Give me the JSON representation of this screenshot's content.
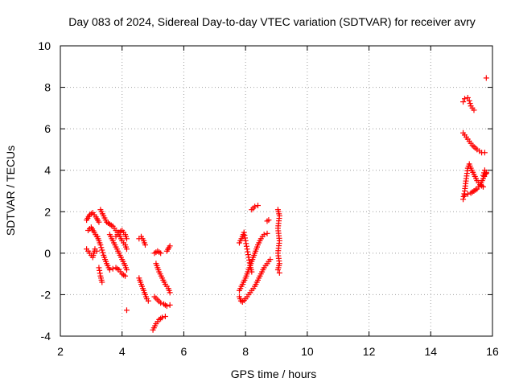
{
  "chart_data": {
    "type": "scatter",
    "title": "Day 083 of 2024, Sidereal Day-to-day VTEC variation (SDTVAR) for receiver avry",
    "xlabel": "GPS time / hours",
    "ylabel": "SDTVAR / TECUs",
    "xlim": [
      2,
      16
    ],
    "ylim": [
      -4,
      10
    ],
    "xticks": [
      2,
      4,
      6,
      8,
      10,
      12,
      14,
      16
    ],
    "yticks": [
      -4,
      -2,
      0,
      2,
      4,
      6,
      8,
      10
    ],
    "grid": true,
    "marker": "+",
    "series_color": "#ff0000",
    "tracks": [
      [
        [
          2.85,
          1.6
        ],
        [
          2.95,
          1.85
        ],
        [
          3.05,
          1.95
        ],
        [
          3.15,
          1.75
        ],
        [
          3.25,
          1.5
        ]
      ],
      [
        [
          2.85,
          0.2
        ],
        [
          2.95,
          0.0
        ],
        [
          3.05,
          -0.2
        ],
        [
          3.12,
          0.2
        ],
        [
          3.18,
          0.1
        ]
      ],
      [
        [
          2.9,
          1.1
        ],
        [
          3.0,
          1.25
        ],
        [
          3.1,
          1.0
        ],
        [
          3.18,
          0.8
        ]
      ],
      [
        [
          3.3,
          2.1
        ],
        [
          3.4,
          1.8
        ],
        [
          3.5,
          1.5
        ],
        [
          3.6,
          1.4
        ],
        [
          3.7,
          1.3
        ],
        [
          3.8,
          1.1
        ],
        [
          3.9,
          0.9
        ],
        [
          4.0,
          0.6
        ],
        [
          4.1,
          0.4
        ],
        [
          4.15,
          0.2
        ]
      ],
      [
        [
          3.2,
          0.8
        ],
        [
          3.3,
          0.4
        ],
        [
          3.4,
          -0.1
        ],
        [
          3.5,
          -0.5
        ],
        [
          3.6,
          -0.8
        ],
        [
          3.7,
          -0.75
        ],
        [
          3.8,
          -0.7
        ],
        [
          3.9,
          -0.8
        ],
        [
          4.0,
          -1.0
        ],
        [
          4.1,
          -1.1
        ]
      ],
      [
        [
          3.25,
          -0.7
        ],
        [
          3.3,
          -1.1
        ],
        [
          3.35,
          -1.4
        ]
      ],
      [
        [
          3.6,
          0.9
        ],
        [
          3.7,
          0.6
        ],
        [
          3.8,
          0.3
        ],
        [
          3.9,
          0.0
        ],
        [
          4.0,
          -0.3
        ],
        [
          4.1,
          -0.6
        ],
        [
          4.15,
          -0.8
        ]
      ],
      [
        [
          3.8,
          0.8
        ],
        [
          3.9,
          1.0
        ],
        [
          4.0,
          1.1
        ],
        [
          4.1,
          0.9
        ],
        [
          4.15,
          0.7
        ]
      ],
      [
        [
          4.15,
          -2.75
        ]
      ],
      [
        [
          4.55,
          0.7
        ],
        [
          4.62,
          0.8
        ],
        [
          4.7,
          0.6
        ],
        [
          4.75,
          0.4
        ]
      ],
      [
        [
          4.55,
          -1.2
        ],
        [
          4.62,
          -1.5
        ],
        [
          4.7,
          -1.8
        ],
        [
          4.75,
          -2.0
        ],
        [
          4.8,
          -2.2
        ],
        [
          4.85,
          -2.3
        ]
      ],
      [
        [
          5.05,
          0.0
        ],
        [
          5.15,
          0.1
        ],
        [
          5.25,
          0.0
        ]
      ],
      [
        [
          5.1,
          -0.5
        ],
        [
          5.2,
          -0.9
        ],
        [
          5.3,
          -1.2
        ],
        [
          5.4,
          -1.5
        ],
        [
          5.5,
          -1.7
        ],
        [
          5.55,
          -1.9
        ]
      ],
      [
        [
          5.05,
          -2.1
        ],
        [
          5.15,
          -2.25
        ],
        [
          5.25,
          -2.4
        ],
        [
          5.35,
          -2.45
        ],
        [
          5.45,
          -2.55
        ],
        [
          5.55,
          -2.5
        ]
      ],
      [
        [
          5.0,
          -3.7
        ],
        [
          5.1,
          -3.4
        ],
        [
          5.2,
          -3.2
        ],
        [
          5.3,
          -3.1
        ],
        [
          5.4,
          -3.05
        ]
      ],
      [
        [
          5.45,
          0.1
        ],
        [
          5.55,
          0.35
        ]
      ],
      [
        [
          7.8,
          0.5
        ],
        [
          7.9,
          0.8
        ],
        [
          7.95,
          1.0
        ],
        [
          8.0,
          0.6
        ],
        [
          8.05,
          0.2
        ],
        [
          8.1,
          -0.2
        ],
        [
          8.15,
          -0.6
        ],
        [
          8.2,
          -0.9
        ]
      ],
      [
        [
          7.8,
          -1.8
        ],
        [
          7.9,
          -1.5
        ],
        [
          8.0,
          -1.2
        ],
        [
          8.1,
          -0.8
        ],
        [
          8.2,
          -0.4
        ],
        [
          8.3,
          0.0
        ],
        [
          8.4,
          0.4
        ],
        [
          8.5,
          0.7
        ],
        [
          8.6,
          0.9
        ],
        [
          8.7,
          0.95
        ]
      ],
      [
        [
          7.8,
          -2.1
        ],
        [
          7.85,
          -2.3
        ],
        [
          7.9,
          -2.35
        ],
        [
          8.0,
          -2.2
        ],
        [
          8.1,
          -2.0
        ],
        [
          8.2,
          -1.8
        ],
        [
          8.3,
          -1.6
        ],
        [
          8.4,
          -1.3
        ],
        [
          8.5,
          -1.0
        ],
        [
          8.6,
          -0.7
        ],
        [
          8.7,
          -0.5
        ],
        [
          8.8,
          -0.3
        ]
      ],
      [
        [
          8.2,
          2.1
        ],
        [
          8.3,
          2.25
        ],
        [
          8.4,
          2.3
        ]
      ],
      [
        [
          8.7,
          1.55
        ],
        [
          8.75,
          1.6
        ]
      ],
      [
        [
          9.05,
          2.1
        ],
        [
          9.1,
          1.8
        ],
        [
          9.05,
          1.2
        ],
        [
          9.1,
          0.6
        ],
        [
          9.05,
          0.0
        ],
        [
          9.1,
          -0.5
        ],
        [
          9.05,
          -0.8
        ],
        [
          9.1,
          -0.95
        ]
      ],
      [
        [
          15.05,
          7.3
        ],
        [
          15.1,
          7.45
        ],
        [
          15.2,
          7.5
        ],
        [
          15.25,
          7.35
        ],
        [
          15.3,
          7.1
        ],
        [
          15.4,
          6.9
        ]
      ],
      [
        [
          15.05,
          5.8
        ],
        [
          15.15,
          5.6
        ],
        [
          15.25,
          5.4
        ],
        [
          15.35,
          5.2
        ],
        [
          15.5,
          5.0
        ],
        [
          15.65,
          4.85
        ],
        [
          15.75,
          4.85
        ]
      ],
      [
        [
          15.05,
          2.6
        ],
        [
          15.1,
          3.0
        ],
        [
          15.15,
          3.6
        ],
        [
          15.2,
          4.1
        ],
        [
          15.25,
          4.3
        ],
        [
          15.3,
          4.1
        ],
        [
          15.4,
          3.8
        ],
        [
          15.5,
          3.5
        ],
        [
          15.6,
          3.3
        ],
        [
          15.7,
          3.2
        ]
      ],
      [
        [
          15.1,
          2.8
        ],
        [
          15.2,
          2.85
        ],
        [
          15.3,
          2.9
        ],
        [
          15.4,
          3.0
        ],
        [
          15.5,
          3.1
        ],
        [
          15.6,
          3.3
        ],
        [
          15.7,
          3.6
        ],
        [
          15.8,
          3.9
        ]
      ],
      [
        [
          15.7,
          3.75
        ],
        [
          15.75,
          4.0
        ],
        [
          15.8,
          3.85
        ]
      ],
      [
        [
          15.8,
          8.45
        ]
      ]
    ]
  }
}
